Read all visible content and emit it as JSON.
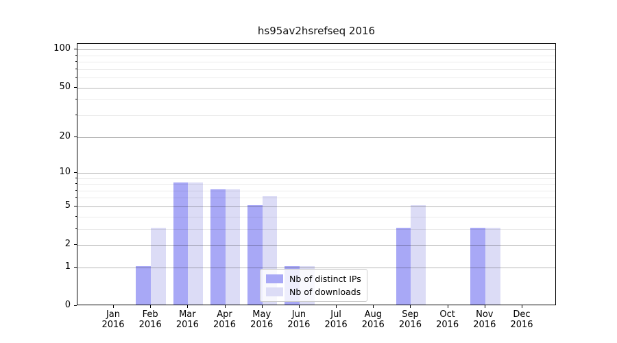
{
  "chart_data": {
    "type": "bar",
    "title": "hs95av2hsrefseq 2016",
    "categories": [
      "Jan",
      "Feb",
      "Mar",
      "Apr",
      "May",
      "Jun",
      "Jul",
      "Aug",
      "Sep",
      "Oct",
      "Nov",
      "Dec"
    ],
    "category_year": "2016",
    "series": [
      {
        "name": "Nb of distinct IPs",
        "color": "#a8a8f6",
        "values": [
          0,
          1,
          8,
          7,
          5,
          1,
          0,
          0,
          3,
          0,
          3,
          0
        ]
      },
      {
        "name": "Nb of downloads",
        "color": "#dcdcf6",
        "values": [
          0,
          3,
          8,
          7,
          6,
          1,
          0,
          0,
          5,
          0,
          3,
          0
        ]
      }
    ],
    "xlabel": "",
    "ylabel": "",
    "yscale": "log1p",
    "ylim": [
      0,
      111
    ],
    "y_major_ticks": [
      0,
      1,
      2,
      5,
      10,
      20,
      50,
      100
    ],
    "y_minor_ticks": [
      3,
      4,
      6,
      7,
      8,
      9,
      30,
      40,
      60,
      70,
      80,
      90
    ],
    "grid": "horizontal",
    "legend_position": "lower-center-inside"
  }
}
